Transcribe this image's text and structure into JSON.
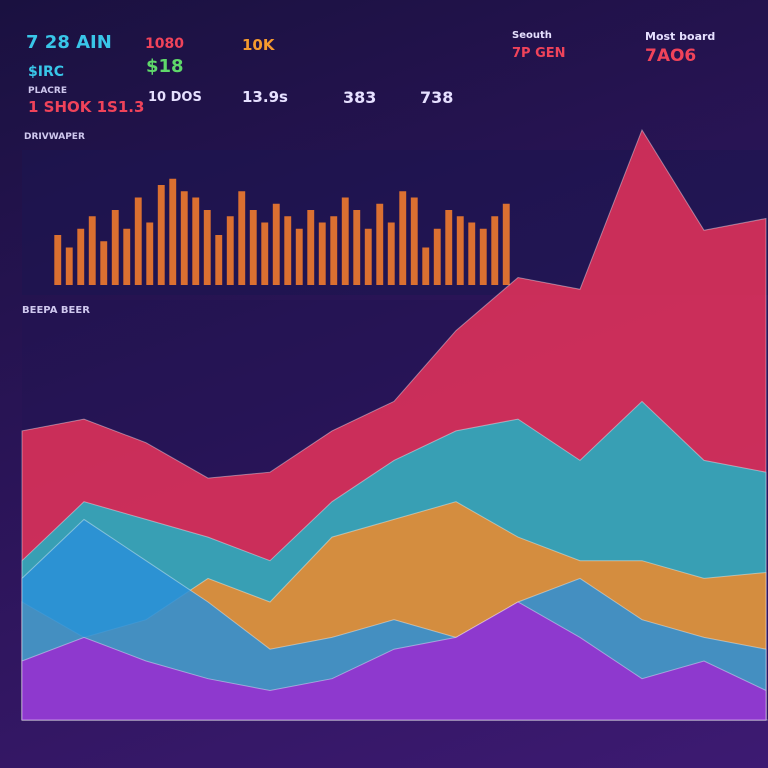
{
  "header": {
    "cards": [
      {
        "title": "7 28 AIN",
        "sub": "$IRC",
        "label": "PLACRE",
        "value": "1 SHOK 1S1.3"
      },
      {
        "title": "1080",
        "sub": "$18",
        "value": "10 DOS"
      },
      {
        "title": "10K",
        "value": "13.9s"
      },
      {
        "value": "383"
      },
      {
        "value": "738"
      },
      {
        "title": "Seouth",
        "sub": "7P GEN"
      },
      {
        "title": "Most board",
        "sub": "7AO6"
      }
    ],
    "panel_top": "DRIVWAPER",
    "panel_bottom": "BEEPA BEER"
  },
  "chart_data": [
    {
      "type": "bar",
      "color": "#f07a2e",
      "categories": [
        null,
        null,
        null,
        null,
        null,
        null,
        null,
        null,
        null,
        null,
        null,
        null,
        null,
        null,
        null,
        null,
        null,
        null,
        null,
        null,
        null,
        null,
        null,
        null,
        null,
        null,
        null,
        null,
        null,
        null,
        null,
        null,
        null,
        null,
        null,
        null,
        null,
        null,
        null,
        null
      ],
      "values": [
        40,
        30,
        45,
        55,
        35,
        60,
        45,
        70,
        50,
        80,
        85,
        75,
        70,
        60,
        40,
        55,
        75,
        60,
        50,
        65,
        55,
        45,
        60,
        50,
        55,
        70,
        60,
        45,
        65,
        50,
        75,
        70,
        30,
        45,
        60,
        55,
        50,
        45,
        55,
        65
      ],
      "ylim": [
        0,
        100
      ]
    },
    {
      "type": "area",
      "x": [
        0,
        1,
        2,
        3,
        4,
        5,
        6,
        7,
        8,
        9,
        10,
        11,
        12
      ],
      "xlim": [
        0,
        12
      ],
      "ylim": [
        0,
        100
      ],
      "series": [
        {
          "color": "#e8335a",
          "values": [
            49,
            51,
            47,
            41,
            42,
            49,
            54,
            66,
            75,
            73,
            100,
            83,
            85
          ]
        },
        {
          "color": "#1fb3c4",
          "values": [
            27,
            37,
            34,
            31,
            27,
            37,
            44,
            49,
            51,
            44,
            54,
            44,
            42
          ]
        },
        {
          "color": "#f08a2a",
          "values": [
            20,
            14,
            17,
            24,
            20,
            31,
            34,
            37,
            31,
            27,
            27,
            24,
            25
          ]
        },
        {
          "color": "#2a8fd8",
          "values": [
            24,
            34,
            27,
            20,
            12,
            14,
            17,
            14,
            20,
            24,
            17,
            14,
            12
          ]
        },
        {
          "color": "#9b2ad0",
          "values": [
            10,
            14,
            10,
            7,
            5,
            7,
            12,
            14,
            20,
            14,
            7,
            10,
            5
          ]
        }
      ]
    }
  ]
}
